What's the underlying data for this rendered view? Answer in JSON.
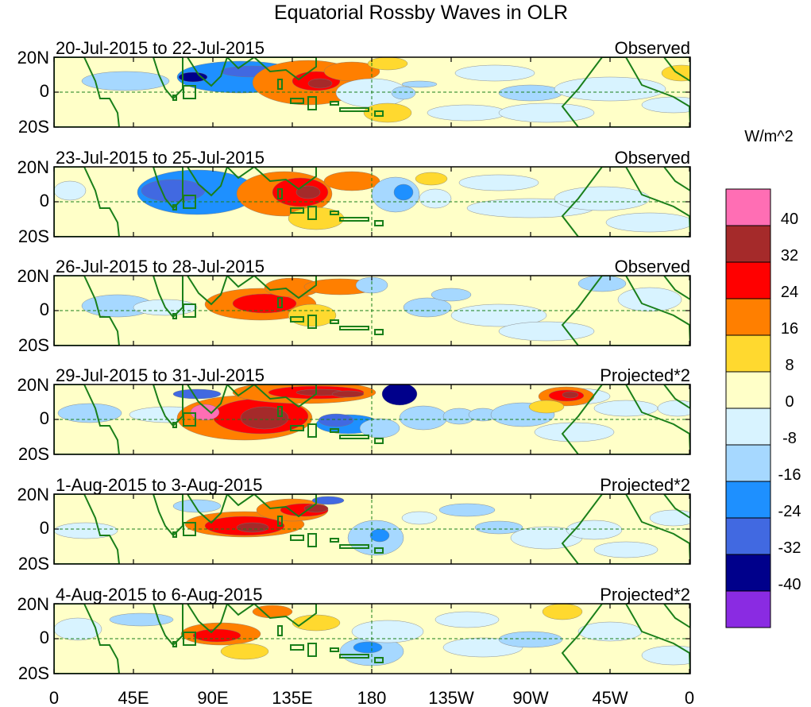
{
  "title": "Equatorial Rossby Waves in OLR",
  "panels": [
    {
      "date_range": "20-Jul-2015 to 22-Jul-2015",
      "label": "Observed"
    },
    {
      "date_range": "23-Jul-2015 to 25-Jul-2015",
      "label": "Observed"
    },
    {
      "date_range": "26-Jul-2015 to 28-Jul-2015",
      "label": "Observed"
    },
    {
      "date_range": "29-Jul-2015 to 31-Jul-2015",
      "label": "Projected*2"
    },
    {
      "date_range": "1-Aug-2015 to 3-Aug-2015",
      "label": "Projected*2"
    },
    {
      "date_range": "4-Aug-2015 to 6-Aug-2015",
      "label": "Projected*2"
    }
  ],
  "lat_labels": [
    "20N",
    "0",
    "20S"
  ],
  "lon_labels": [
    "0",
    "45E",
    "90E",
    "135E",
    "180",
    "135W",
    "90W",
    "45W",
    "0"
  ],
  "colorbar": {
    "units": "W/m^2",
    "ticks": [
      "40",
      "32",
      "24",
      "16",
      "8",
      "0",
      "-8",
      "-16",
      "-24",
      "-32",
      "-40"
    ],
    "colors": [
      "#ff6eb4",
      "#a52a2a",
      "#ff0000",
      "#ff7f00",
      "#ffd92f",
      "#ffffc8",
      "#d8f3ff",
      "#a6d8ff",
      "#1e90ff",
      "#4169e1",
      "#00008b",
      "#8a2be2"
    ]
  }
}
